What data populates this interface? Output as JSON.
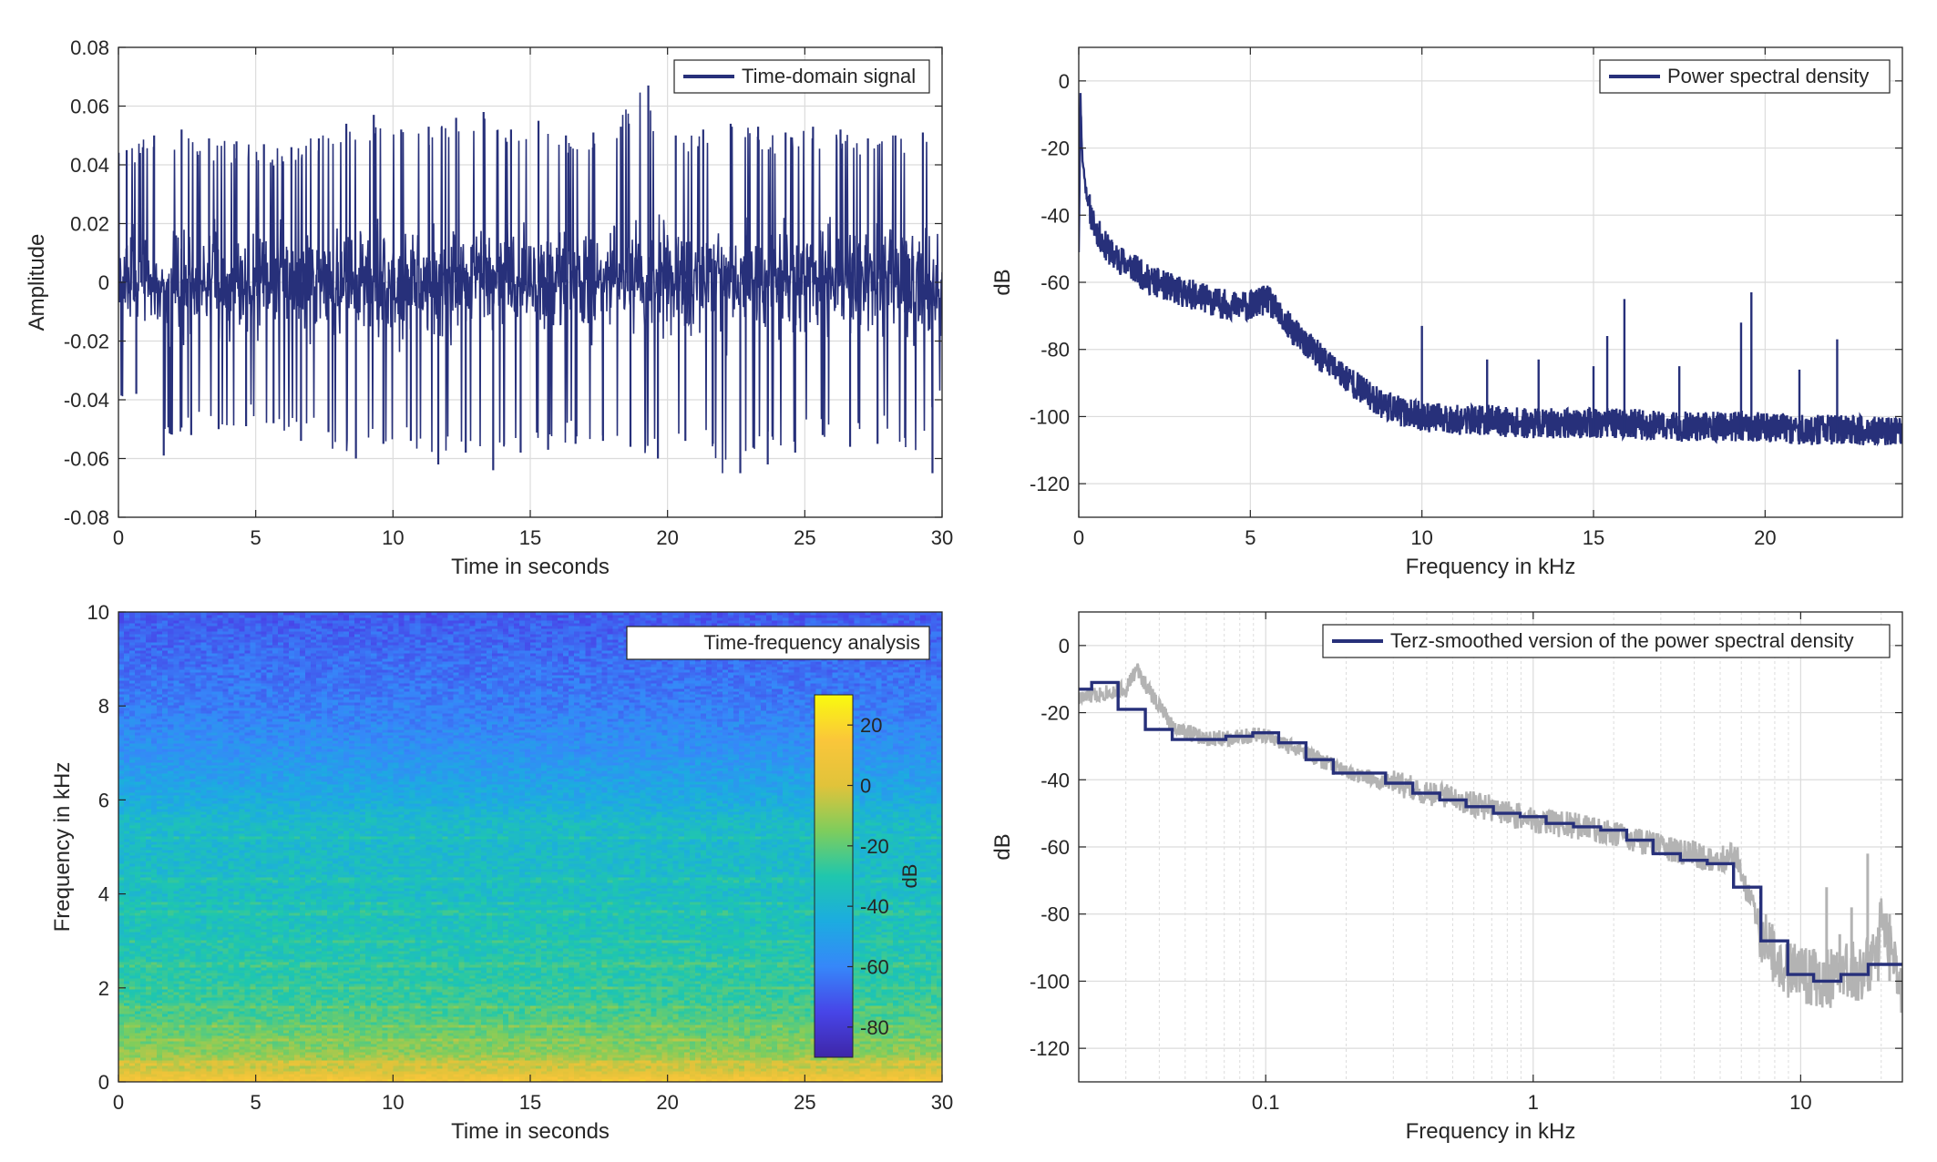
{
  "colors": {
    "series": "#27307a",
    "raw": "#b3b3b3",
    "grid": "#dcdcdc",
    "axis": "#262626",
    "colormap": [
      "#3e26a8",
      "#4745e8",
      "#3687f9",
      "#1cace0",
      "#1fc7ad",
      "#7fcd5c",
      "#e1c33a",
      "#fac63a",
      "#f9fb0e"
    ]
  },
  "chart_data": [
    {
      "id": "time-domain",
      "type": "line",
      "xlabel": "Time in seconds",
      "ylabel": "Amplitude",
      "xlim": [
        0,
        30
      ],
      "ylim": [
        -0.08,
        0.08
      ],
      "xticks": [
        0,
        5,
        10,
        15,
        20,
        25,
        30
      ],
      "yticks": [
        -0.08,
        -0.06,
        -0.04,
        -0.02,
        0,
        0.02,
        0.04,
        0.06,
        0.08
      ],
      "yticklabels": [
        "-0.08",
        "-0.06",
        "-0.04",
        "-0.02",
        "0",
        "0.02",
        "0.04",
        "0.06",
        "0.08"
      ],
      "grid": true,
      "legend": {
        "position": "top-right",
        "entries": [
          "Time-domain signal"
        ]
      },
      "series": [
        {
          "name": "Time-domain signal",
          "envelope": {
            "t": [
              0,
              1,
              2,
              3,
              4,
              5,
              6,
              7,
              8,
              9,
              10,
              11,
              12,
              13,
              14,
              15,
              16,
              17,
              18,
              19,
              20,
              21,
              22,
              23,
              24,
              25,
              26,
              27,
              28,
              29,
              30
            ],
            "max": [
              0.045,
              0.05,
              0.052,
              0.049,
              0.048,
              0.047,
              0.046,
              0.049,
              0.054,
              0.057,
              0.052,
              0.053,
              0.056,
              0.058,
              0.052,
              0.055,
              0.05,
              0.051,
              0.053,
              0.067,
              0.05,
              0.052,
              0.054,
              0.053,
              0.051,
              0.053,
              0.052,
              0.049,
              0.05,
              0.051,
              0.047
            ],
            "min": [
              -0.038,
              -0.059,
              -0.052,
              -0.05,
              -0.049,
              -0.048,
              -0.054,
              -0.051,
              -0.06,
              -0.055,
              -0.054,
              -0.062,
              -0.058,
              -0.064,
              -0.058,
              -0.057,
              -0.055,
              -0.054,
              -0.056,
              -0.06,
              -0.054,
              -0.055,
              -0.065,
              -0.062,
              -0.058,
              -0.052,
              -0.056,
              -0.055,
              -0.053,
              -0.065,
              -0.04
            ]
          }
        }
      ]
    },
    {
      "id": "psd",
      "type": "line",
      "xlabel": "Frequency in kHz",
      "ylabel": "dB",
      "xlim": [
        0,
        24
      ],
      "ylim": [
        -130,
        10
      ],
      "xticks": [
        0,
        5,
        10,
        15,
        20
      ],
      "yticks": [
        -120,
        -100,
        -80,
        -60,
        -40,
        -20,
        0
      ],
      "grid": true,
      "legend": {
        "position": "top-right",
        "entries": [
          "Power spectral density"
        ]
      },
      "series": [
        {
          "name": "Power spectral density",
          "f_khz": [
            0,
            0.05,
            0.1,
            0.2,
            0.4,
            0.7,
            1.0,
            1.5,
            2.0,
            2.5,
            3.0,
            3.5,
            4.0,
            4.5,
            5.0,
            5.5,
            6.0,
            6.5,
            7.0,
            7.5,
            8.0,
            8.5,
            9.0,
            9.5,
            10.0,
            11,
            12,
            13,
            14,
            15,
            16,
            17,
            18,
            19,
            20,
            21,
            22,
            23,
            24
          ],
          "mean_db": [
            -50,
            -5,
            -22,
            -32,
            -42,
            -48,
            -52,
            -55,
            -59,
            -61,
            -63,
            -64,
            -66,
            -67,
            -67,
            -65,
            -72,
            -77,
            -82,
            -86,
            -90,
            -94,
            -97,
            -99,
            -100,
            -101,
            -101,
            -102,
            -102,
            -102,
            -102,
            -103,
            -103,
            -103,
            -103,
            -104,
            -104,
            -104,
            -105
          ],
          "peaks": [
            [
              10.0,
              -73
            ],
            [
              11.9,
              -83
            ],
            [
              13.4,
              -83
            ],
            [
              15.0,
              -85
            ],
            [
              15.4,
              -76
            ],
            [
              15.9,
              -65
            ],
            [
              17.5,
              -85
            ],
            [
              19.3,
              -72
            ],
            [
              19.6,
              -63
            ],
            [
              21.0,
              -86
            ],
            [
              22.1,
              -77
            ]
          ]
        }
      ]
    },
    {
      "id": "spectrogram",
      "type": "heatmap",
      "xlabel": "Time in seconds",
      "ylabel": "Frequency in kHz",
      "xlim": [
        0,
        30
      ],
      "ylim": [
        0,
        10
      ],
      "xticks": [
        0,
        5,
        10,
        15,
        20,
        25,
        30
      ],
      "yticks": [
        0,
        2,
        4,
        6,
        8,
        10
      ],
      "legend": {
        "position": "top-right",
        "entries": [
          "Time-frequency analysis"
        ]
      },
      "colorbar": {
        "label": "dB",
        "range": [
          -90,
          30
        ],
        "ticks": [
          -80,
          -60,
          -40,
          -20,
          0,
          20
        ]
      },
      "level_profile": {
        "freq_khz": [
          0,
          0.1,
          0.3,
          0.6,
          1.0,
          1.5,
          2.0,
          3.0,
          4.0,
          5.0,
          5.5,
          6.0,
          7.0,
          8.0,
          9.0,
          10.0
        ],
        "db": [
          18,
          8,
          -4,
          -12,
          -18,
          -24,
          -28,
          -32,
          -36,
          -38,
          -37,
          -45,
          -55,
          -62,
          -66,
          -70
        ]
      },
      "bands_khz": [
        0.4,
        0.9,
        1.2,
        1.6,
        2.0,
        2.5,
        3.0,
        3.6,
        3.8,
        4.3,
        5.2
      ]
    },
    {
      "id": "terz",
      "type": "line",
      "xlabel": "Frequency in kHz",
      "ylabel": "dB",
      "xscale": "log",
      "xlim": [
        0.02,
        24
      ],
      "ylim": [
        -130,
        10
      ],
      "xticks": [
        0.1,
        1,
        10
      ],
      "xticklabels": [
        "0.1",
        "1",
        "10"
      ],
      "yticks": [
        -120,
        -100,
        -80,
        -60,
        -40,
        -20,
        0
      ],
      "grid": true,
      "legend": {
        "position": "top-right",
        "entries": [
          "Terz-smoothed version of the power spectral density"
        ]
      },
      "series": [
        {
          "name": "Terz-smoothed version of the power spectral density",
          "f_khz": [
            0.02,
            0.025,
            0.0315,
            0.04,
            0.05,
            0.063,
            0.08,
            0.1,
            0.125,
            0.16,
            0.2,
            0.25,
            0.315,
            0.4,
            0.5,
            0.63,
            0.8,
            1.0,
            1.25,
            1.6,
            2.0,
            2.5,
            3.15,
            4.0,
            5.0,
            6.3,
            8.0,
            10.0,
            12.5,
            16.0,
            20.0
          ],
          "db": [
            -13,
            -11,
            -19,
            -25,
            -28,
            -28,
            -27,
            -26,
            -29,
            -34,
            -38,
            -38,
            -41,
            -44,
            -46,
            -48,
            -50,
            -51,
            -53,
            -54,
            -55,
            -58,
            -62,
            -64,
            -65,
            -72,
            -88,
            -98,
            -100,
            -98,
            -95
          ]
        },
        {
          "role": "raw spectrum (grey)",
          "f_khz": [
            0.02,
            0.025,
            0.03,
            0.033,
            0.037,
            0.045,
            0.06,
            0.08,
            0.1,
            0.15,
            0.2,
            0.3,
            0.4,
            0.6,
            0.8,
            1.0,
            1.5,
            2.0,
            3.0,
            4.0,
            5.0,
            5.7,
            6.5,
            7.5,
            9.0,
            11,
            13,
            15,
            17,
            19,
            20,
            21,
            24
          ],
          "db": [
            -16,
            -14,
            -13,
            -7,
            -14,
            -24,
            -28,
            -27,
            -27,
            -33,
            -38,
            -41,
            -44,
            -47,
            -50,
            -52,
            -54,
            -56,
            -60,
            -62,
            -64,
            -62,
            -76,
            -90,
            -96,
            -99,
            -99,
            -96,
            -98,
            -92,
            -82,
            -88,
            -102
          ]
        }
      ]
    }
  ]
}
